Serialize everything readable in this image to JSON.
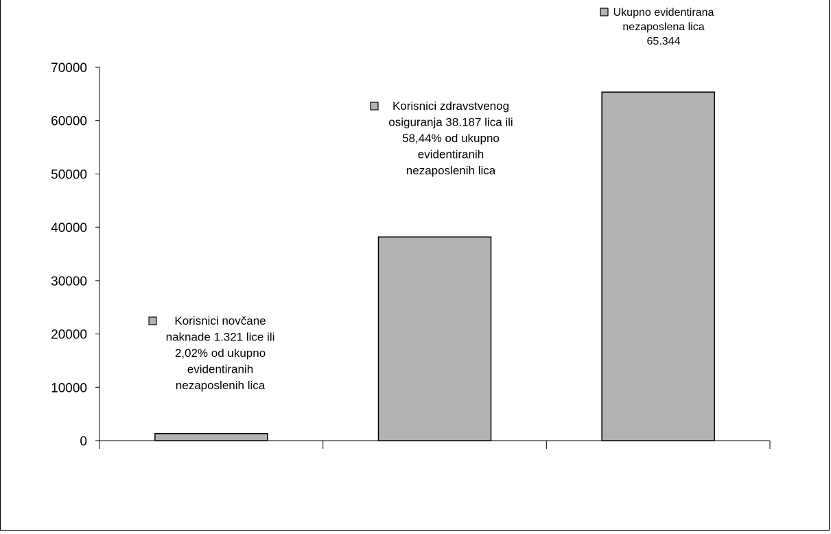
{
  "chart_data": {
    "type": "bar",
    "categories": [
      "",
      "",
      ""
    ],
    "values": [
      1321,
      38187,
      65344
    ],
    "ylim": [
      0,
      70000
    ],
    "yticks": [
      "0",
      "10000",
      "20000",
      "30000",
      "40000",
      "50000",
      "60000",
      "70000"
    ],
    "grid": false,
    "bar_color": "#b3b3b3",
    "bar_stroke": "#000000",
    "data_labels": [
      [
        "Korisnici novčane",
        "naknade 1.321 lice ili",
        "2,02% od ukupno",
        "evidentiranih",
        "nezaposlenih lica"
      ],
      [
        "Korisnici zdravstvenog",
        "osiguranja 38.187 lica ili",
        "58,44% od ukupno",
        "evidentiranih",
        "nezaposlenih lica"
      ],
      [
        "Ukupno evidentirana",
        "nezaposlena lica",
        "65.344"
      ]
    ]
  }
}
